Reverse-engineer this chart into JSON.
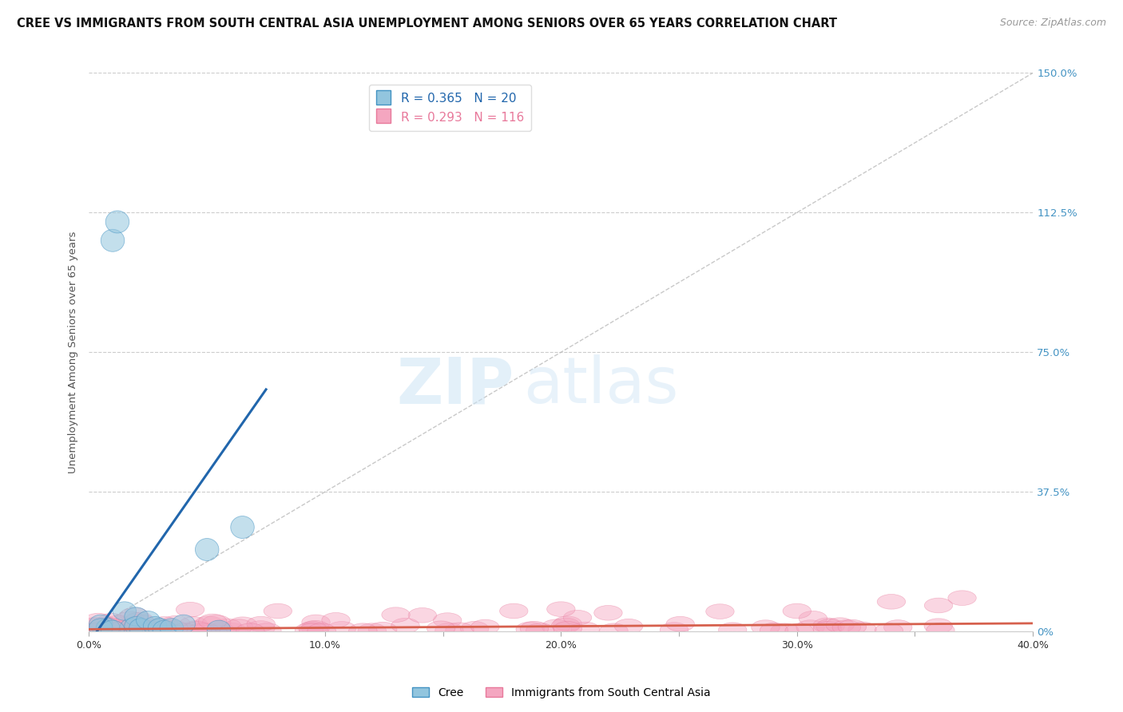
{
  "title": "CREE VS IMMIGRANTS FROM SOUTH CENTRAL ASIA UNEMPLOYMENT AMONG SENIORS OVER 65 YEARS CORRELATION CHART",
  "source": "Source: ZipAtlas.com",
  "ylabel": "Unemployment Among Seniors over 65 years",
  "xlim": [
    0.0,
    0.4
  ],
  "ylim": [
    0.0,
    1.5
  ],
  "yticks": [
    0.0,
    0.375,
    0.75,
    1.125,
    1.5
  ],
  "ytick_labels": [
    "0%",
    "37.5%",
    "75.0%",
    "112.5%",
    "150.0%"
  ],
  "xtick_labels": [
    "0.0%",
    "",
    "10.0%",
    "",
    "20.0%",
    "",
    "30.0%",
    "",
    "40.0%"
  ],
  "xticks": [
    0.0,
    0.05,
    0.1,
    0.15,
    0.2,
    0.25,
    0.3,
    0.35,
    0.4
  ],
  "watermark_zip": "ZIP",
  "watermark_atlas": "atlas",
  "legend_cree_R": "R = 0.365",
  "legend_cree_N": "N = 20",
  "legend_imm_R": "R = 0.293",
  "legend_imm_N": "N = 116",
  "cree_color": "#92c5de",
  "cree_edge_color": "#4393c3",
  "imm_color": "#f4a6c0",
  "imm_edge_color": "#e8799b",
  "cree_line_color": "#2166ac",
  "imm_line_color": "#d6604d",
  "background_color": "#ffffff",
  "grid_color": "#cccccc",
  "axis_label_color": "#555555",
  "right_tick_color": "#4393c3",
  "cree_points_x": [
    0.005,
    0.008,
    0.01,
    0.012,
    0.015,
    0.018,
    0.02,
    0.02,
    0.022,
    0.025,
    0.028,
    0.03,
    0.032,
    0.035,
    0.04,
    0.05,
    0.055,
    0.065,
    0.005,
    0.01
  ],
  "cree_points_y": [
    0.02,
    0.01,
    1.05,
    1.1,
    0.055,
    0.01,
    0.04,
    0.015,
    0.01,
    0.03,
    0.015,
    0.01,
    0.005,
    0.01,
    0.02,
    0.22,
    0.005,
    0.28,
    0.01,
    0.005
  ],
  "cree_line_x0": 0.0,
  "cree_line_y0": -0.03,
  "cree_line_x1": 0.075,
  "cree_line_y1": 0.65
}
